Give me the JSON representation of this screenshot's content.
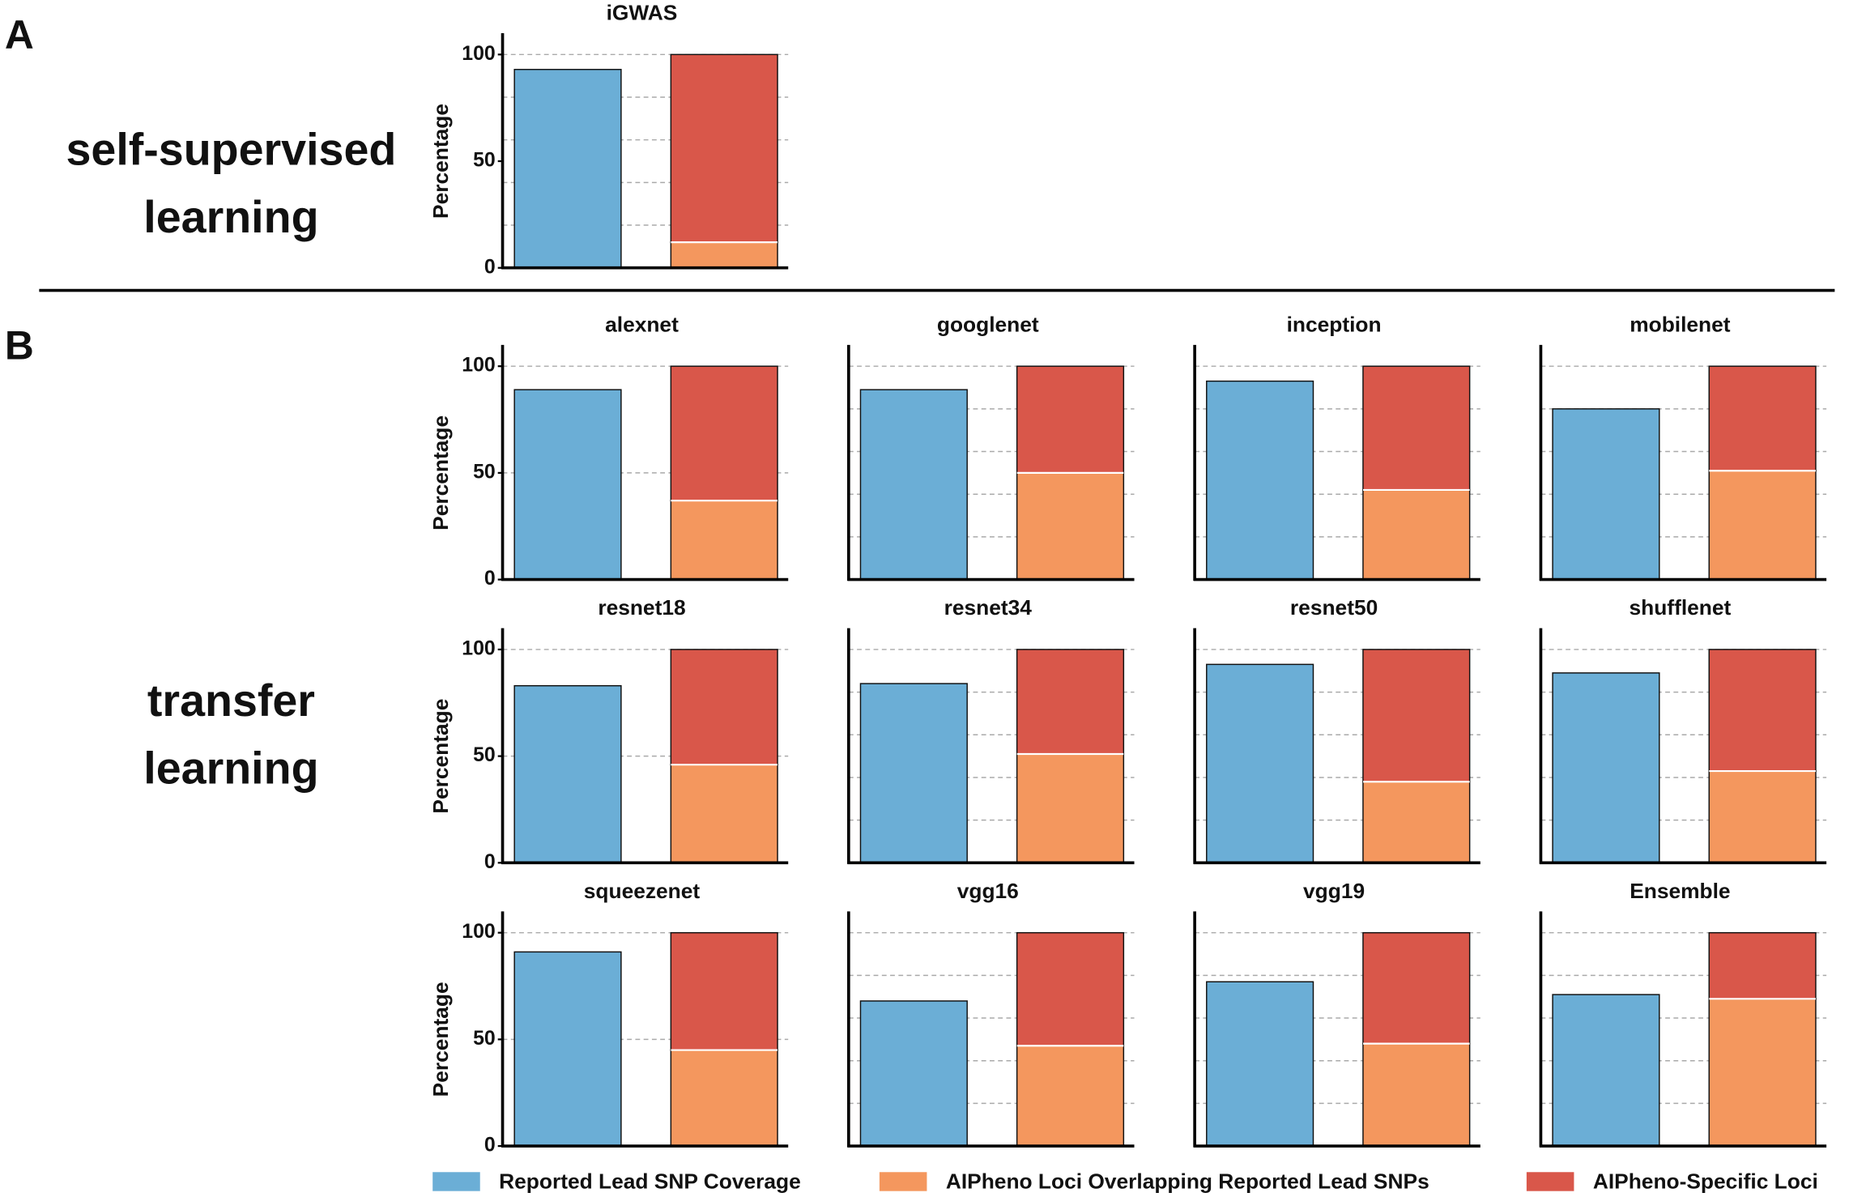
{
  "panels": [
    {
      "label": "A",
      "title": [
        "self-supervised",
        "learning"
      ]
    },
    {
      "label": "B",
      "title": [
        "transfer",
        "learning"
      ]
    }
  ],
  "legend": [
    {
      "name": "Reported Lead SNP Coverage",
      "color": "#6baed6"
    },
    {
      "name": "AIPheno Loci Overlapping Reported Lead SNPs",
      "color": "#f4975e"
    },
    {
      "name": "AIPheno-Specific Loci",
      "color": "#d9574a"
    }
  ],
  "chart_data": [
    {
      "type": "bar",
      "stacked": true,
      "title": "iGWAS",
      "ylabel": "Percentage",
      "categories": [
        null,
        null
      ],
      "series": [
        {
          "values": [
            93,
            null
          ]
        },
        {
          "values": [
            null,
            12
          ]
        },
        {
          "values": [
            null,
            88
          ]
        }
      ],
      "ylim": [
        0,
        110
      ],
      "yticks": [
        0,
        50,
        100
      ],
      "grid_lines": [
        20,
        40,
        60,
        80,
        100
      ]
    },
    {
      "type": "bar",
      "stacked": true,
      "title": "alexnet",
      "ylabel": "Percentage",
      "categories": [
        null,
        null
      ],
      "series": [
        {
          "values": [
            89,
            null
          ]
        },
        {
          "values": [
            null,
            37
          ]
        },
        {
          "values": [
            null,
            63
          ]
        }
      ],
      "ylim": [
        0,
        110
      ],
      "yticks": [
        0,
        50,
        100
      ],
      "grid_lines": [
        50,
        100
      ]
    },
    {
      "type": "bar",
      "stacked": true,
      "title": "googlenet",
      "categories": [
        null,
        null
      ],
      "series": [
        {
          "values": [
            89,
            null
          ]
        },
        {
          "values": [
            null,
            50
          ]
        },
        {
          "values": [
            null,
            50
          ]
        }
      ],
      "ylim": [
        0,
        110
      ],
      "grid_lines": [
        20,
        40,
        60,
        80,
        100
      ]
    },
    {
      "type": "bar",
      "stacked": true,
      "title": "inception",
      "categories": [
        null,
        null
      ],
      "series": [
        {
          "values": [
            93,
            null
          ]
        },
        {
          "values": [
            null,
            42
          ]
        },
        {
          "values": [
            null,
            58
          ]
        }
      ],
      "ylim": [
        0,
        110
      ],
      "grid_lines": [
        20,
        40,
        60,
        80,
        100
      ]
    },
    {
      "type": "bar",
      "stacked": true,
      "title": "mobilenet",
      "categories": [
        null,
        null
      ],
      "series": [
        {
          "values": [
            80,
            null
          ]
        },
        {
          "values": [
            null,
            51
          ]
        },
        {
          "values": [
            null,
            49
          ]
        }
      ],
      "ylim": [
        0,
        110
      ],
      "grid_lines": [
        20,
        40,
        60,
        80,
        100
      ]
    },
    {
      "type": "bar",
      "stacked": true,
      "title": "resnet18",
      "ylabel": "Percentage",
      "categories": [
        null,
        null
      ],
      "series": [
        {
          "values": [
            83,
            null
          ]
        },
        {
          "values": [
            null,
            46
          ]
        },
        {
          "values": [
            null,
            54
          ]
        }
      ],
      "ylim": [
        0,
        110
      ],
      "yticks": [
        0,
        50,
        100
      ],
      "grid_lines": [
        50,
        100
      ]
    },
    {
      "type": "bar",
      "stacked": true,
      "title": "resnet34",
      "categories": [
        null,
        null
      ],
      "series": [
        {
          "values": [
            84,
            null
          ]
        },
        {
          "values": [
            null,
            51
          ]
        },
        {
          "values": [
            null,
            49
          ]
        }
      ],
      "ylim": [
        0,
        110
      ],
      "grid_lines": [
        20,
        40,
        60,
        80,
        100
      ]
    },
    {
      "type": "bar",
      "stacked": true,
      "title": "resnet50",
      "categories": [
        null,
        null
      ],
      "series": [
        {
          "values": [
            93,
            null
          ]
        },
        {
          "values": [
            null,
            38
          ]
        },
        {
          "values": [
            null,
            62
          ]
        }
      ],
      "ylim": [
        0,
        110
      ],
      "grid_lines": [
        20,
        40,
        60,
        80,
        100
      ]
    },
    {
      "type": "bar",
      "stacked": true,
      "title": "shufflenet",
      "categories": [
        null,
        null
      ],
      "series": [
        {
          "values": [
            89,
            null
          ]
        },
        {
          "values": [
            null,
            43
          ]
        },
        {
          "values": [
            null,
            57
          ]
        }
      ],
      "ylim": [
        0,
        110
      ],
      "grid_lines": [
        20,
        40,
        60,
        80,
        100
      ]
    },
    {
      "type": "bar",
      "stacked": true,
      "title": "squeezenet",
      "ylabel": "Percentage",
      "categories": [
        null,
        null
      ],
      "series": [
        {
          "values": [
            91,
            null
          ]
        },
        {
          "values": [
            null,
            45
          ]
        },
        {
          "values": [
            null,
            55
          ]
        }
      ],
      "ylim": [
        0,
        110
      ],
      "yticks": [
        0,
        50,
        100
      ],
      "grid_lines": [
        50,
        100
      ]
    },
    {
      "type": "bar",
      "stacked": true,
      "title": "vgg16",
      "categories": [
        null,
        null
      ],
      "series": [
        {
          "values": [
            68,
            null
          ]
        },
        {
          "values": [
            null,
            47
          ]
        },
        {
          "values": [
            null,
            53
          ]
        }
      ],
      "ylim": [
        0,
        110
      ],
      "grid_lines": [
        20,
        40,
        60,
        80,
        100
      ]
    },
    {
      "type": "bar",
      "stacked": true,
      "title": "vgg19",
      "categories": [
        null,
        null
      ],
      "series": [
        {
          "values": [
            77,
            null
          ]
        },
        {
          "values": [
            null,
            48
          ]
        },
        {
          "values": [
            null,
            52
          ]
        }
      ],
      "ylim": [
        0,
        110
      ],
      "grid_lines": [
        20,
        40,
        60,
        80,
        100
      ]
    },
    {
      "type": "bar",
      "stacked": true,
      "title": "Ensemble",
      "categories": [
        null,
        null
      ],
      "series": [
        {
          "values": [
            71,
            null
          ]
        },
        {
          "values": [
            null,
            69
          ]
        },
        {
          "values": [
            null,
            31
          ]
        }
      ],
      "ylim": [
        0,
        110
      ],
      "grid_lines": [
        20,
        40,
        60,
        80,
        100
      ]
    }
  ]
}
